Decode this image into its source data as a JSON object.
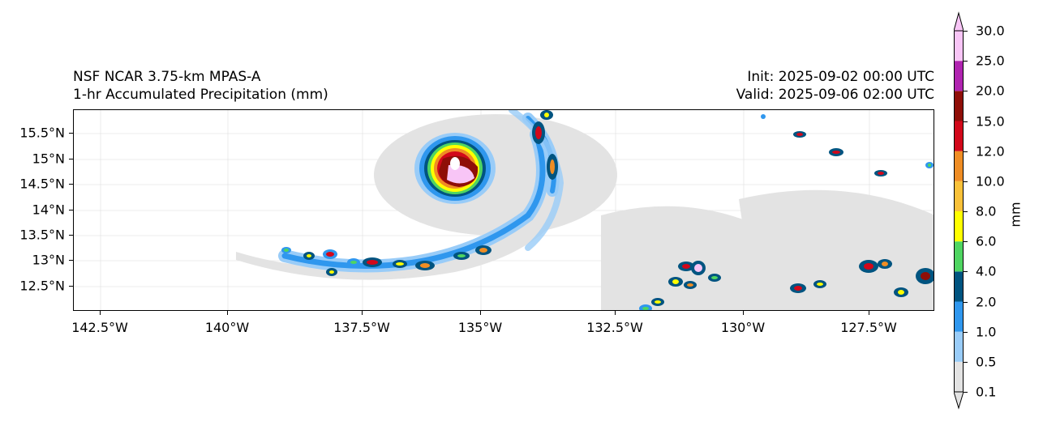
{
  "title": {
    "left_line1": "NSF NCAR 3.75-km MPAS-A",
    "left_line2": "1-hr Accumulated Precipitation (mm)",
    "right_line1": "Init: 2025-09-02 00:00 UTC",
    "right_line2": "Valid: 2025-09-06 02:00 UTC"
  },
  "map": {
    "lat_labels": [
      "15.5°N",
      "15°N",
      "14.5°N",
      "14°N",
      "13.5°N",
      "13°N",
      "12.5°N"
    ],
    "lon_labels": [
      "142.5°W",
      "140°W",
      "137.5°W",
      "135°W",
      "132.5°W",
      "130°W",
      "127.5°W"
    ],
    "gridlines": true
  },
  "colorbar": {
    "unit": "mm",
    "levels": [
      "0.1",
      "0.5",
      "1.0",
      "2.0",
      "4.0",
      "6.0",
      "8.0",
      "10.0",
      "12.0",
      "15.0",
      "20.0",
      "25.0",
      "30.0"
    ],
    "colors": [
      "#e3e3e3",
      "#99ccf8",
      "#2f97ee",
      "#005480",
      "#4fd561",
      "#ffff00",
      "#f9c139",
      "#ef8d24",
      "#d2081a",
      "#8f0e08",
      "#b024b0",
      "#f8c5f6"
    ]
  }
}
